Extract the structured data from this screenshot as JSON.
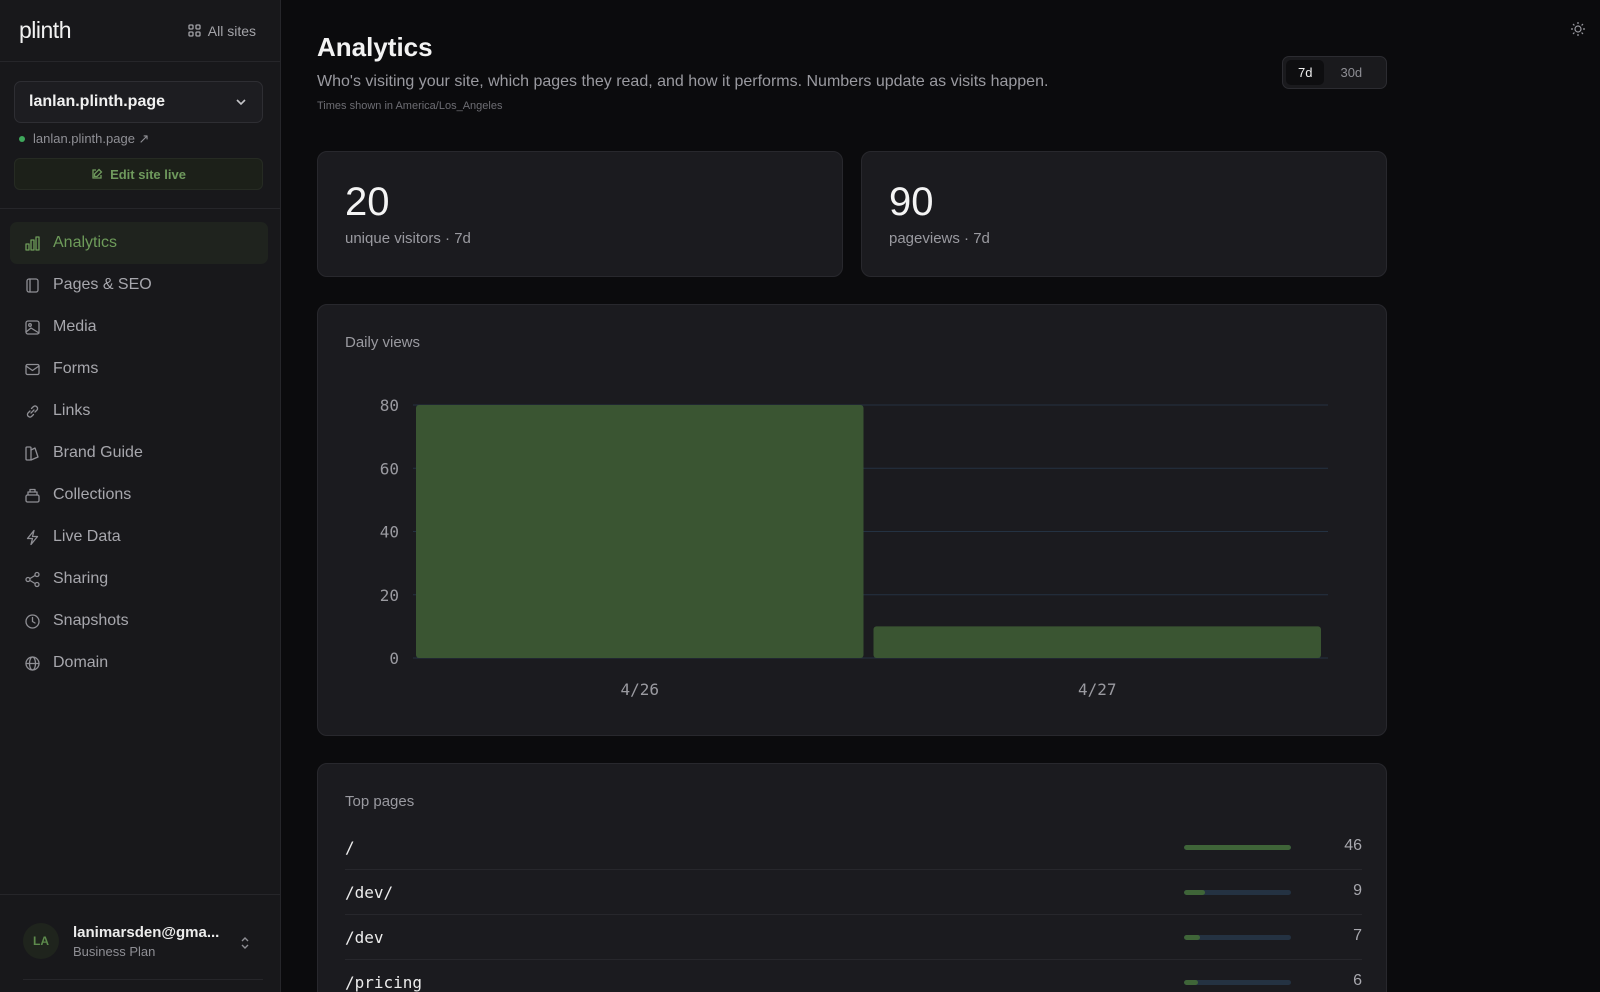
{
  "brand": {
    "logo": "plinth",
    "all_sites": "All sites"
  },
  "site": {
    "selected": "lanlan.plinth.page",
    "link": "lanlan.plinth.page ↗",
    "edit_live": "Edit site live"
  },
  "nav": {
    "items": [
      {
        "label": "Analytics",
        "icon": "bar-chart-icon",
        "active": true
      },
      {
        "label": "Pages & SEO",
        "icon": "page-icon"
      },
      {
        "label": "Media",
        "icon": "image-icon"
      },
      {
        "label": "Forms",
        "icon": "mail-icon"
      },
      {
        "label": "Links",
        "icon": "link-icon"
      },
      {
        "label": "Brand Guide",
        "icon": "brand-icon"
      },
      {
        "label": "Collections",
        "icon": "collection-icon"
      },
      {
        "label": "Live Data",
        "icon": "bolt-icon"
      },
      {
        "label": "Sharing",
        "icon": "share-icon"
      },
      {
        "label": "Snapshots",
        "icon": "clock-icon"
      },
      {
        "label": "Domain",
        "icon": "globe-icon"
      }
    ]
  },
  "user": {
    "initials": "LA",
    "name": "lanimarsden@gma...",
    "plan": "Business Plan"
  },
  "header": {
    "title": "Analytics",
    "subtitle": "Who's visiting your site, which pages they read, and how it performs. Numbers update as visits happen.",
    "timezone": "Times shown in America/Los_Angeles",
    "ranges": [
      "7d",
      "30d"
    ],
    "active_range": "7d"
  },
  "stats": {
    "visitors": {
      "value": "20",
      "label": "unique visitors · 7d"
    },
    "pageviews": {
      "value": "90",
      "label": "pageviews · 7d"
    }
  },
  "chart": {
    "title": "Daily views"
  },
  "chart_data": {
    "type": "bar",
    "title": "Daily views",
    "categories": [
      "4/26",
      "4/27"
    ],
    "values": [
      80,
      10
    ],
    "yticks": [
      0,
      20,
      40,
      60,
      80
    ],
    "ylim": [
      0,
      80
    ],
    "grid": true,
    "bar_color": "#3a5532",
    "grid_color": "#243242"
  },
  "top_pages": {
    "title": "Top pages",
    "max": 46,
    "rows": [
      {
        "path": "/",
        "count": 46
      },
      {
        "path": "/dev/",
        "count": 9
      },
      {
        "path": "/dev",
        "count": 7
      },
      {
        "path": "/pricing",
        "count": 6
      }
    ]
  },
  "colors": {
    "accent": "#6e9c5a",
    "bar": "#3a5532",
    "track": "#243242",
    "background": "#0b0b0d",
    "card": "#1b1b1f"
  }
}
